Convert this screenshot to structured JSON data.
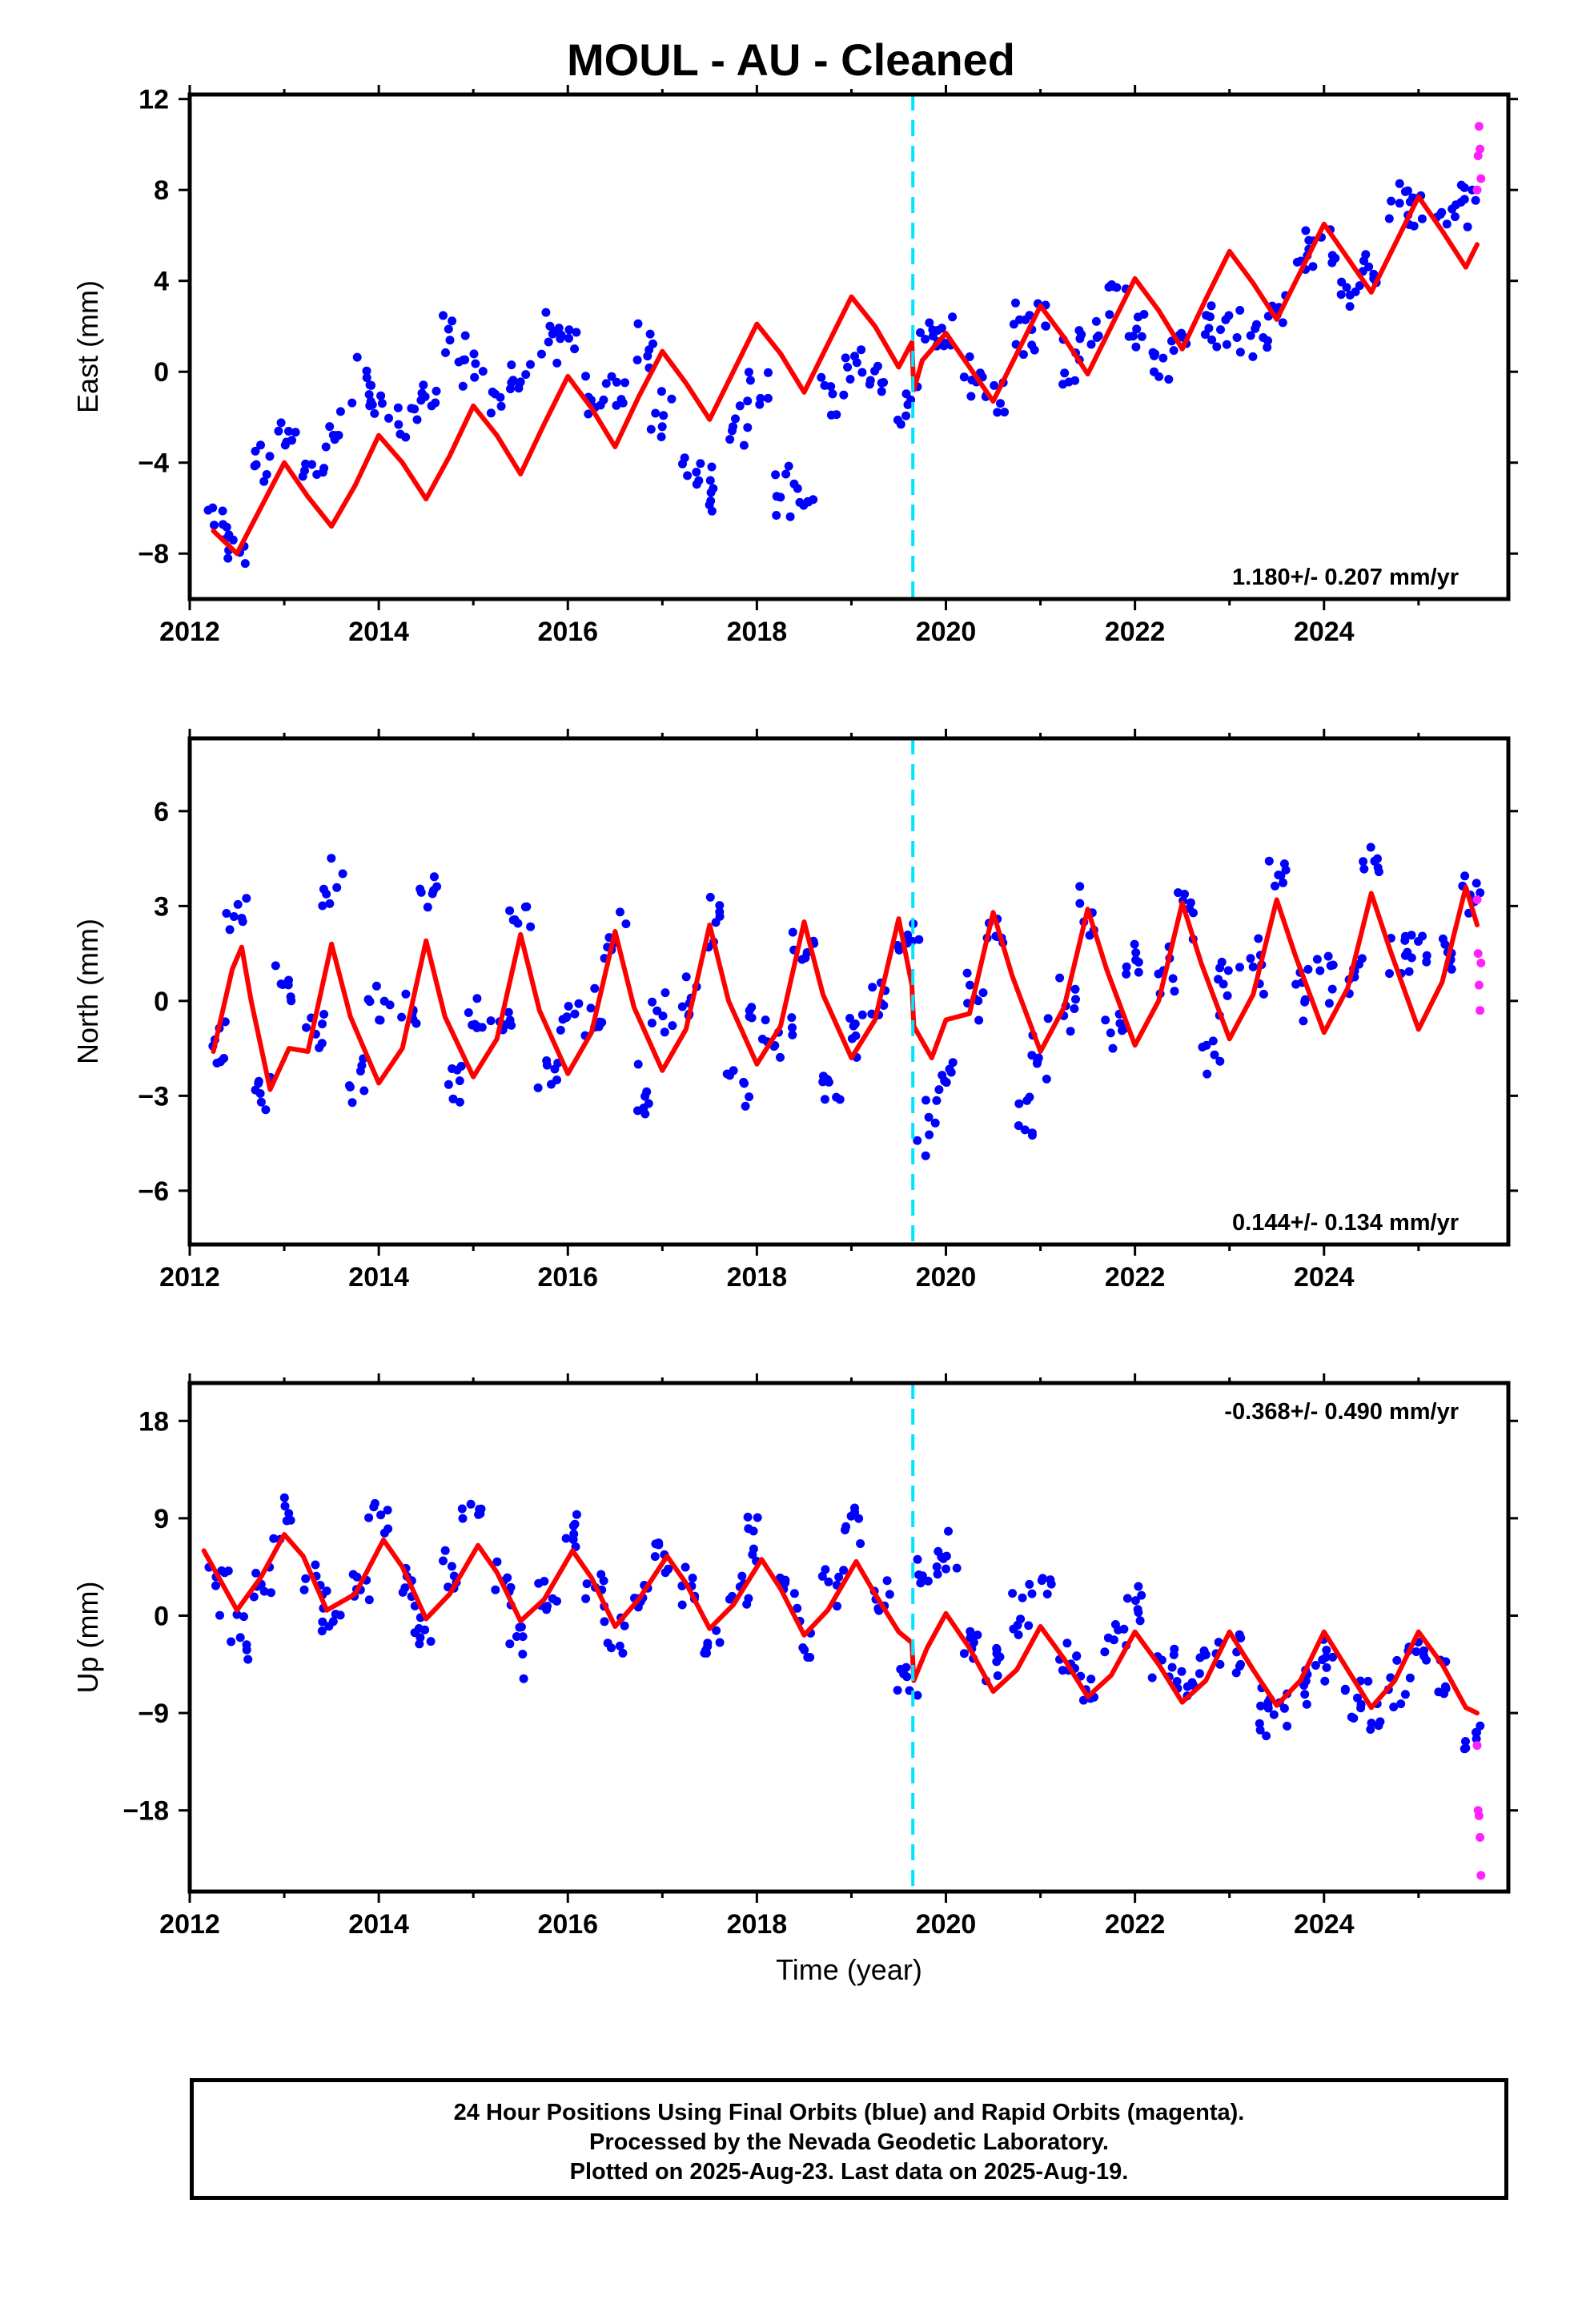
{
  "title": "MOUL  - AU - Cleaned",
  "colors": {
    "final": "#0000ff",
    "rapid": "#ff22ff",
    "model": "#ff0000",
    "event": "#00e5ff"
  },
  "footer": {
    "line1": "24 Hour Positions Using Final Orbits (blue) and Rapid Orbits (magenta).",
    "line2": "Processed by the Nevada Geodetic Laboratory.",
    "line3": "Plotted on 2025-Aug-23. Last data on 2025-Aug-19."
  },
  "chart_data": [
    {
      "type": "scatter",
      "ylabel": "East (mm)",
      "xlabel": "",
      "xlim": [
        2012.0,
        2025.95
      ],
      "ylim": [
        -10.0,
        12.2
      ],
      "xticks": [
        2012,
        2014,
        2016,
        2018,
        2020,
        2022,
        2024
      ],
      "yticks": [
        -8,
        -4,
        0,
        4,
        8,
        12
      ],
      "event_line_x": 2019.65,
      "rate_label": "1.180+/- 0.207 mm/yr",
      "rate_label_pos": "bottom-right",
      "series": [
        {
          "name": "Final Orbits",
          "type": "scatter",
          "color": "#0000ff",
          "x": [
            2012.3,
            2012.5,
            2012.8,
            2013.0,
            2013.3,
            2013.5,
            2013.8,
            2014.0,
            2014.3,
            2014.5,
            2014.8,
            2015.0,
            2015.3,
            2015.5,
            2015.8,
            2016.0,
            2016.3,
            2016.5,
            2016.8,
            2017.0,
            2017.3,
            2017.5,
            2017.8,
            2018.0,
            2018.3,
            2018.5,
            2018.8,
            2019.0,
            2019.3,
            2019.6,
            2019.8,
            2020.0,
            2020.3,
            2020.5,
            2020.8,
            2021.0,
            2021.3,
            2021.5,
            2021.8,
            2022.0,
            2022.3,
            2022.5,
            2022.8,
            2023.0,
            2023.3,
            2023.5,
            2023.8,
            2024.0,
            2024.3,
            2024.5,
            2024.8,
            2025.0,
            2025.3,
            2025.55
          ],
          "y": [
            -6.5,
            -8.0,
            -4.0,
            -2.5,
            -4.5,
            -3.0,
            -0.5,
            -1.5,
            -2.0,
            -1.0,
            1.5,
            0.5,
            -1.0,
            -0.5,
            1.5,
            1.5,
            -1.0,
            -1.0,
            1.0,
            -2.0,
            -4.5,
            -5.0,
            -2.5,
            -1.0,
            -5.5,
            -5.5,
            -1.0,
            0.5,
            -0.5,
            -1.5,
            2.0,
            1.5,
            0.0,
            -1.0,
            2.0,
            2.0,
            0.5,
            1.5,
            4.0,
            2.0,
            0.5,
            1.5,
            2.0,
            2.0,
            1.5,
            3.0,
            5.5,
            5.5,
            3.5,
            4.5,
            7.5,
            7.0,
            6.5,
            7.5
          ]
        },
        {
          "name": "Rapid Orbits",
          "type": "scatter",
          "color": "#ff22ff",
          "x": [
            2025.62,
            2025.63,
            2025.64,
            2025.65,
            2025.66
          ],
          "y": [
            8.0,
            9.5,
            10.8,
            9.8,
            8.5
          ]
        },
        {
          "name": "Model",
          "type": "line",
          "color": "#ff0000",
          "x": [
            2012.25,
            2012.5,
            2012.75,
            2013.0,
            2013.25,
            2013.5,
            2013.75,
            2014.0,
            2014.25,
            2014.5,
            2014.75,
            2015.0,
            2015.25,
            2015.5,
            2015.75,
            2016.0,
            2016.25,
            2016.5,
            2016.75,
            2017.0,
            2017.25,
            2017.5,
            2017.75,
            2018.0,
            2018.25,
            2018.5,
            2018.75,
            2019.0,
            2019.25,
            2019.5,
            2019.64,
            2019.66,
            2019.75,
            2020.0,
            2020.25,
            2020.5,
            2020.75,
            2021.0,
            2021.25,
            2021.5,
            2021.75,
            2022.0,
            2022.25,
            2022.5,
            2022.75,
            2023.0,
            2023.25,
            2023.5,
            2023.75,
            2024.0,
            2024.25,
            2024.5,
            2024.75,
            2025.0,
            2025.25,
            2025.5,
            2025.62
          ],
          "y": [
            -7.0,
            -8.0,
            -6.0,
            -4.0,
            -5.5,
            -6.8,
            -5.0,
            -2.8,
            -4.0,
            -5.6,
            -3.7,
            -1.5,
            -2.8,
            -4.5,
            -2.3,
            -0.2,
            -1.6,
            -3.3,
            -1.1,
            0.9,
            -0.5,
            -2.1,
            0.0,
            2.1,
            0.8,
            -0.9,
            1.2,
            3.3,
            2.0,
            0.2,
            1.3,
            -0.8,
            0.5,
            1.7,
            0.2,
            -1.3,
            0.8,
            2.9,
            1.5,
            -0.1,
            2.0,
            4.1,
            2.7,
            1.0,
            3.2,
            5.3,
            3.9,
            2.3,
            4.4,
            6.5,
            5.0,
            3.5,
            5.6,
            7.7,
            6.2,
            4.6,
            5.6
          ]
        }
      ]
    },
    {
      "type": "scatter",
      "ylabel": "North (mm)",
      "xlabel": "",
      "xlim": [
        2012.0,
        2025.95
      ],
      "ylim": [
        -7.7,
        8.3
      ],
      "xticks": [
        2012,
        2014,
        2016,
        2018,
        2020,
        2022,
        2024
      ],
      "yticks": [
        -6,
        -3,
        0,
        3,
        6
      ],
      "event_line_x": 2019.65,
      "rate_label": "0.144+/- 0.134 mm/yr",
      "rate_label_pos": "bottom-right",
      "series": [
        {
          "name": "Final Orbits",
          "type": "scatter",
          "color": "#0000ff",
          "x": [
            2012.3,
            2012.5,
            2012.8,
            2013.0,
            2013.3,
            2013.5,
            2013.8,
            2014.0,
            2014.3,
            2014.5,
            2014.8,
            2015.0,
            2015.3,
            2015.5,
            2015.8,
            2016.0,
            2016.3,
            2016.5,
            2016.8,
            2017.0,
            2017.3,
            2017.5,
            2017.8,
            2018.0,
            2018.3,
            2018.5,
            2018.8,
            2019.0,
            2019.3,
            2019.6,
            2019.8,
            2020.0,
            2020.3,
            2020.5,
            2020.8,
            2021.0,
            2021.3,
            2021.5,
            2021.8,
            2022.0,
            2022.3,
            2022.5,
            2022.8,
            2023.0,
            2023.3,
            2023.5,
            2023.8,
            2024.0,
            2024.3,
            2024.5,
            2024.8,
            2025.0,
            2025.3,
            2025.55
          ],
          "y": [
            -1.5,
            2.5,
            -3.0,
            0.5,
            -1.0,
            3.5,
            -2.5,
            0.0,
            -0.5,
            3.5,
            -2.5,
            -0.5,
            -0.5,
            2.5,
            -2.5,
            -0.5,
            -0.5,
            2.0,
            -3.0,
            -0.5,
            0.0,
            2.5,
            -2.5,
            -0.5,
            -1.0,
            2.0,
            -3.0,
            -1.0,
            0.0,
            2.0,
            -4.0,
            -2.0,
            0.0,
            2.0,
            -3.5,
            -1.5,
            0.0,
            2.5,
            -1.0,
            1.0,
            1.0,
            3.0,
            -1.5,
            1.0,
            1.0,
            4.0,
            0.0,
            1.0,
            1.0,
            4.5,
            1.5,
            1.5,
            1.5,
            3.5
          ]
        },
        {
          "name": "Rapid Orbits",
          "type": "scatter",
          "color": "#ff22ff",
          "x": [
            2025.62,
            2025.63,
            2025.64,
            2025.65,
            2025.66
          ],
          "y": [
            3.2,
            1.5,
            0.5,
            -0.3,
            1.2
          ]
        },
        {
          "name": "Model",
          "type": "line",
          "color": "#ff0000",
          "x": [
            2012.25,
            2012.45,
            2012.55,
            2012.65,
            2012.85,
            2013.05,
            2013.25,
            2013.5,
            2013.7,
            2014.0,
            2014.25,
            2014.5,
            2014.7,
            2015.0,
            2015.25,
            2015.5,
            2015.7,
            2016.0,
            2016.25,
            2016.5,
            2016.7,
            2017.0,
            2017.25,
            2017.5,
            2017.7,
            2018.0,
            2018.25,
            2018.5,
            2018.7,
            2019.0,
            2019.25,
            2019.5,
            2019.64,
            2019.66,
            2019.85,
            2020.0,
            2020.25,
            2020.5,
            2020.7,
            2021.0,
            2021.25,
            2021.5,
            2021.7,
            2022.0,
            2022.25,
            2022.5,
            2022.7,
            2023.0,
            2023.25,
            2023.5,
            2023.7,
            2024.0,
            2024.25,
            2024.5,
            2024.7,
            2025.0,
            2025.25,
            2025.5,
            2025.62
          ],
          "y": [
            -1.6,
            1.0,
            1.7,
            0.0,
            -2.8,
            -1.5,
            -1.6,
            1.8,
            -0.5,
            -2.6,
            -1.5,
            1.9,
            -0.5,
            -2.4,
            -1.2,
            2.1,
            -0.3,
            -2.3,
            -1.0,
            2.2,
            -0.2,
            -2.2,
            -0.9,
            2.4,
            0.0,
            -2.0,
            -0.8,
            2.5,
            0.2,
            -1.8,
            -0.6,
            2.6,
            0.5,
            -0.8,
            -1.8,
            -0.6,
            -0.4,
            2.8,
            0.8,
            -1.6,
            -0.2,
            2.9,
            1.0,
            -1.4,
            0.0,
            3.1,
            1.2,
            -1.2,
            0.2,
            3.2,
            1.4,
            -1.0,
            0.4,
            3.4,
            1.6,
            -0.9,
            0.6,
            3.6,
            2.4
          ]
        }
      ]
    },
    {
      "type": "scatter",
      "ylabel": "Up (mm)",
      "xlabel": "Time (year)",
      "xlim": [
        2012.0,
        2025.95
      ],
      "ylim": [
        -25.5,
        21.5
      ],
      "xticks": [
        2012,
        2014,
        2016,
        2018,
        2020,
        2022,
        2024
      ],
      "yticks": [
        -18,
        -9,
        0,
        9,
        18
      ],
      "event_line_x": 2019.65,
      "rate_label": "-0.368+/- 0.490 mm/yr",
      "rate_label_pos": "top-right",
      "series": [
        {
          "name": "Final Orbits",
          "type": "scatter",
          "color": "#0000ff",
          "x": [
            2012.3,
            2012.5,
            2012.8,
            2013.0,
            2013.3,
            2013.5,
            2013.8,
            2014.0,
            2014.3,
            2014.5,
            2014.8,
            2015.0,
            2015.3,
            2015.5,
            2015.8,
            2016.0,
            2016.3,
            2016.5,
            2016.8,
            2017.0,
            2017.3,
            2017.5,
            2017.8,
            2018.0,
            2018.3,
            2018.5,
            2018.8,
            2019.0,
            2019.3,
            2019.6,
            2019.8,
            2020.0,
            2020.3,
            2020.5,
            2020.8,
            2021.0,
            2021.3,
            2021.5,
            2021.8,
            2022.0,
            2022.3,
            2022.5,
            2022.8,
            2023.0,
            2023.3,
            2023.5,
            2023.8,
            2024.0,
            2024.3,
            2024.5,
            2024.8,
            2025.0,
            2025.3,
            2025.55
          ],
          "y": [
            3.0,
            -3.0,
            4.0,
            9.0,
            3.0,
            0.0,
            3.0,
            9.0,
            3.0,
            -2.0,
            4.0,
            9.0,
            3.0,
            -3.0,
            2.0,
            7.0,
            3.0,
            -2.0,
            2.0,
            6.0,
            3.0,
            -3.0,
            2.0,
            7.0,
            3.0,
            -2.0,
            3.0,
            8.0,
            1.0,
            -6.0,
            4.0,
            6.0,
            -3.0,
            -5.0,
            0.0,
            3.0,
            -4.0,
            -6.0,
            -2.0,
            1.0,
            -5.0,
            -6.0,
            -4.0,
            -3.0,
            -8.0,
            -9.0,
            -6.0,
            -4.0,
            -8.0,
            -9.0,
            -6.0,
            -3.0,
            -6.0,
            -11.0
          ]
        },
        {
          "name": "Rapid Orbits",
          "type": "scatter",
          "color": "#ff22ff",
          "x": [
            2025.62,
            2025.63,
            2025.64,
            2025.65,
            2025.66
          ],
          "y": [
            -12.0,
            -18.0,
            -18.5,
            -20.5,
            -24.0
          ]
        },
        {
          "name": "Model",
          "type": "line",
          "color": "#ff0000",
          "x": [
            2012.15,
            2012.5,
            2012.75,
            2013.0,
            2013.2,
            2013.45,
            2013.75,
            2014.05,
            2014.25,
            2014.5,
            2014.75,
            2015.05,
            2015.25,
            2015.5,
            2015.75,
            2016.05,
            2016.25,
            2016.5,
            2016.75,
            2017.05,
            2017.25,
            2017.5,
            2017.75,
            2018.05,
            2018.25,
            2018.5,
            2018.75,
            2019.05,
            2019.25,
            2019.5,
            2019.64,
            2019.66,
            2019.8,
            2020.0,
            2020.25,
            2020.5,
            2020.75,
            2021.0,
            2021.25,
            2021.5,
            2021.75,
            2022.0,
            2022.25,
            2022.5,
            2022.75,
            2023.0,
            2023.25,
            2023.5,
            2023.75,
            2024.0,
            2024.25,
            2024.5,
            2024.75,
            2025.0,
            2025.25,
            2025.5,
            2025.62
          ],
          "y": [
            6.0,
            0.5,
            3.5,
            7.5,
            5.5,
            0.5,
            2.0,
            7.0,
            4.5,
            -0.3,
            2.0,
            6.5,
            4.0,
            -0.5,
            1.5,
            6.0,
            3.5,
            -1.0,
            1.5,
            5.5,
            3.0,
            -1.2,
            1.0,
            5.2,
            2.5,
            -1.8,
            0.5,
            5.0,
            2.0,
            -1.5,
            -2.5,
            -6.0,
            -3.0,
            0.2,
            -3.0,
            -7.0,
            -5.0,
            -1.0,
            -4.0,
            -7.5,
            -5.5,
            -1.5,
            -4.5,
            -8.0,
            -6.0,
            -1.5,
            -5.0,
            -8.3,
            -6.0,
            -1.5,
            -5.0,
            -8.5,
            -6.0,
            -1.5,
            -4.5,
            -8.5,
            -9.0
          ]
        }
      ]
    }
  ]
}
